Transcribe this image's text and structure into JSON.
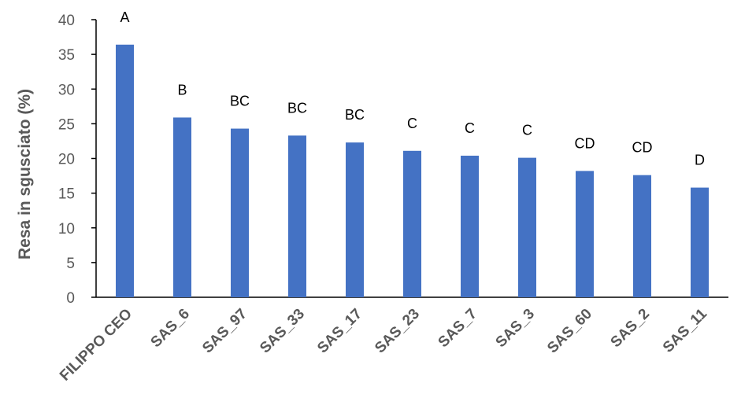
{
  "chart_data": {
    "type": "bar",
    "title": "",
    "xlabel": "",
    "ylabel": "Resa in sgusciato (%)",
    "ylim": [
      0,
      40
    ],
    "yticks": [
      0,
      5,
      10,
      15,
      20,
      25,
      30,
      35,
      40
    ],
    "grid": false,
    "legend": "none",
    "bar_color": "#4472C4",
    "categories": [
      "FILIPPO CEO",
      "SAS_6",
      "SAS_97",
      "SAS_33",
      "SAS_17",
      "SAS_23",
      "SAS_7",
      "SAS_3",
      "SAS_60",
      "SAS_2",
      "SAS_11"
    ],
    "values": [
      36.4,
      25.9,
      24.3,
      23.3,
      22.3,
      21.1,
      20.4,
      20.1,
      18.2,
      17.6,
      15.8
    ],
    "annotations": [
      "A",
      "B",
      "BC",
      "BC",
      "BC",
      "C",
      "C",
      "C",
      "CD",
      "CD",
      "D"
    ]
  }
}
